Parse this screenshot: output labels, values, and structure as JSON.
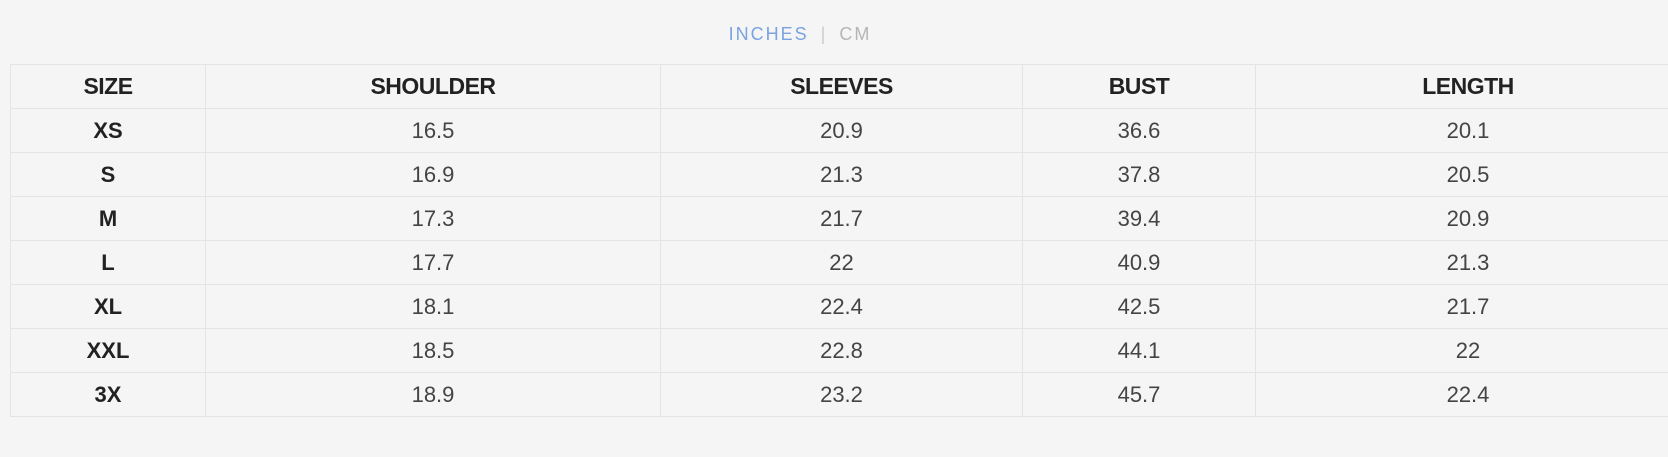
{
  "units": {
    "active": "INCHES",
    "separator": "|",
    "inactive": "CM"
  },
  "table": {
    "headers": [
      "SIZE",
      "SHOULDER",
      "SLEEVES",
      "BUST",
      "LENGTH"
    ],
    "rows": [
      [
        "XS",
        "16.5",
        "20.9",
        "36.6",
        "20.1"
      ],
      [
        "S",
        "16.9",
        "21.3",
        "37.8",
        "20.5"
      ],
      [
        "M",
        "17.3",
        "21.7",
        "39.4",
        "20.9"
      ],
      [
        "L",
        "17.7",
        "22",
        "40.9",
        "21.3"
      ],
      [
        "XL",
        "18.1",
        "22.4",
        "42.5",
        "21.7"
      ],
      [
        "XXL",
        "18.5",
        "22.8",
        "44.1",
        "22"
      ],
      [
        "3X",
        "18.9",
        "23.2",
        "45.7",
        "22.4"
      ]
    ]
  }
}
